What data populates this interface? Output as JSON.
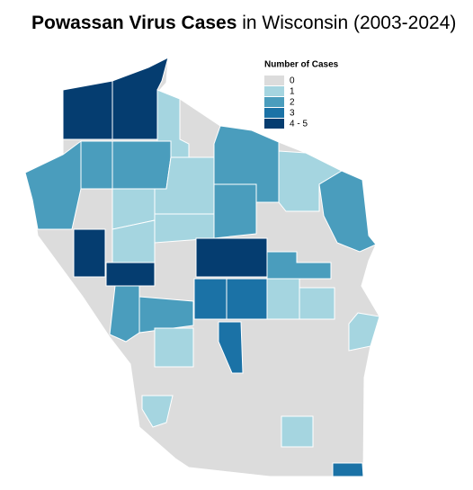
{
  "header": {
    "title_bold": "Powassan Virus Cases",
    "title_rest": "in Wisconsin (2003-2024)"
  },
  "legend": {
    "title": "Number of Cases",
    "items": [
      {
        "label": "0",
        "color": "#dcdcdc"
      },
      {
        "label": "1",
        "color": "#a5d5e0"
      },
      {
        "label": "2",
        "color": "#4a9dbd"
      },
      {
        "label": "3",
        "color": "#1b72a6"
      },
      {
        "label": "4 - 5",
        "color": "#053d70"
      }
    ]
  }
}
